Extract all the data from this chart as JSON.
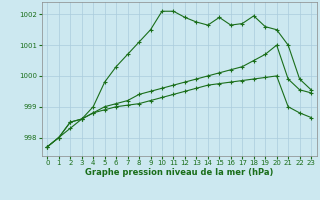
{
  "bg_color": "#cce8f0",
  "grid_color": "#aaccdd",
  "line_color": "#1a6e1a",
  "xlabel": "Graphe pression niveau de la mer (hPa)",
  "ylim": [
    997.4,
    1002.4
  ],
  "xlim": [
    -0.5,
    23.5
  ],
  "yticks": [
    998,
    999,
    1000,
    1001,
    1002
  ],
  "xticks": [
    0,
    1,
    2,
    3,
    4,
    5,
    6,
    7,
    8,
    9,
    10,
    11,
    12,
    13,
    14,
    15,
    16,
    17,
    18,
    19,
    20,
    21,
    22,
    23
  ],
  "series": [
    {
      "x": [
        0,
        1,
        2,
        3,
        4,
        5,
        6,
        7,
        8,
        9,
        10,
        11,
        12,
        13,
        14,
        15,
        16,
        17,
        18,
        19,
        20,
        21,
        22,
        23
      ],
      "y": [
        997.7,
        998.0,
        998.3,
        998.6,
        999.0,
        999.8,
        1000.3,
        1000.7,
        1001.1,
        1001.5,
        1002.1,
        1002.1,
        1001.9,
        1001.75,
        1001.65,
        1001.9,
        1001.65,
        1001.7,
        1001.95,
        1001.6,
        1001.5,
        1001.0,
        999.9,
        999.55
      ]
    },
    {
      "x": [
        0,
        1,
        2,
        3,
        4,
        5,
        6,
        7,
        8,
        9,
        10,
        11,
        12,
        13,
        14,
        15,
        16,
        17,
        18,
        19,
        20,
        21,
        22,
        23
      ],
      "y": [
        997.7,
        998.0,
        998.5,
        998.6,
        998.8,
        999.0,
        999.1,
        999.2,
        999.4,
        999.5,
        999.6,
        999.7,
        999.8,
        999.9,
        1000.0,
        1000.1,
        1000.2,
        1000.3,
        1000.5,
        1000.7,
        1001.0,
        999.9,
        999.55,
        999.45
      ]
    },
    {
      "x": [
        0,
        1,
        2,
        3,
        4,
        5,
        6,
        7,
        8,
        9,
        10,
        11,
        12,
        13,
        14,
        15,
        16,
        17,
        18,
        19,
        20,
        21,
        22,
        23
      ],
      "y": [
        997.7,
        998.0,
        998.5,
        998.6,
        998.8,
        998.9,
        999.0,
        999.05,
        999.1,
        999.2,
        999.3,
        999.4,
        999.5,
        999.6,
        999.7,
        999.75,
        999.8,
        999.85,
        999.9,
        999.95,
        1000.0,
        999.0,
        998.8,
        998.65
      ]
    }
  ]
}
